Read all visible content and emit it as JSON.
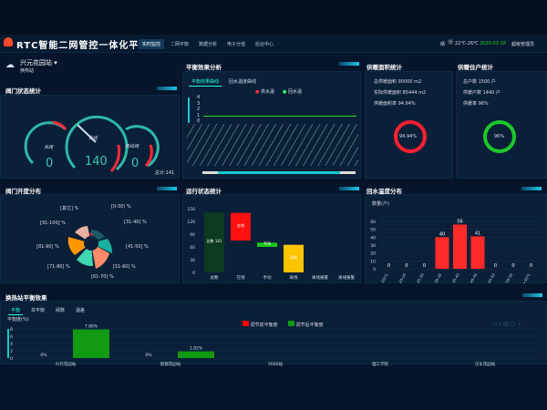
{
  "header": {
    "title": "RTC智能二网管控一体化平台",
    "nav": [
      "实时监控",
      "二网平衡",
      "数据分析",
      "电子分值",
      "后台中心"
    ],
    "weather_label": "晴",
    "temperature": "22℃-26℃",
    "date": "2020-03-18",
    "user": "超级管理员"
  },
  "station": {
    "name": "兴元花园站",
    "sub": "换热站"
  },
  "valve_status": {
    "title": "阀门状态统计",
    "gauges": [
      {
        "label": "关阀",
        "value": "0"
      },
      {
        "label": "在线",
        "value": "140"
      },
      {
        "label": "离线阀",
        "value": "0"
      }
    ],
    "total": "总计:141"
  },
  "balance": {
    "title": "平衡效果分析",
    "tabs": [
      "平衡效果曲线",
      "回水温度曲线"
    ],
    "legend": [
      "供水温",
      "回水温"
    ],
    "y_ticks": [
      "4",
      "3",
      "2",
      "1",
      "0"
    ]
  },
  "area": {
    "title": "供暖面积统计",
    "rows": [
      {
        "k": "总供暖面积",
        "v": "90000 m2"
      },
      {
        "k": "实际供暖面积",
        "v": "85444 m2"
      },
      {
        "k": "供暖面积率",
        "v": "94.94%"
      }
    ],
    "donut": "94.94%",
    "percent": 94.94,
    "color": "#ff2030"
  },
  "households": {
    "title": "供暖住户统计",
    "rows": [
      {
        "k": "总户数",
        "v": "1500 户"
      },
      {
        "k": "供暖户数",
        "v": "1440 户"
      },
      {
        "k": "供暖率",
        "v": "96%"
      }
    ],
    "donut": "96%",
    "percent": 96,
    "color": "#1bc82a"
  },
  "opening": {
    "title": "阀门开度分布",
    "labels": [
      "[0-30) %",
      "[31-40] %",
      "[41-50] %",
      "[51-60] %",
      "[61-70] %",
      "[71-80] %",
      "[81-90] %",
      "[91-100] %",
      "[其它] %"
    ]
  },
  "chart_data": [
    {
      "type": "bar",
      "title": "运行状态统计",
      "categories": [
        "总数",
        "在线",
        "手动",
        "离线",
        "离线报警",
        "离线报警"
      ],
      "values": [
        141,
        65,
        10,
        65,
        0,
        0
      ],
      "bases": [
        0,
        75,
        60,
        0,
        0,
        0
      ],
      "colors": [
        "#0d3a22",
        "#ff1010",
        "#18c818",
        "#ffc400",
        "#fff",
        "#fff"
      ],
      "labels": [
        "总数 141",
        "在线",
        "手动",
        "离线",
        "",
        ""
      ],
      "ylim": [
        0,
        150
      ],
      "y_ticks": [
        0,
        30,
        60,
        90,
        120,
        150
      ]
    },
    {
      "type": "bar",
      "title": "回水温度分布",
      "ylabel": "数量(户)",
      "categories": [
        "[0-20)℃",
        "20-25",
        "25-30",
        "30-35",
        "35-40",
        "40-45",
        "45-50",
        "50-55",
        ">55℃"
      ],
      "values": [
        0,
        0,
        0,
        40,
        56,
        41,
        0,
        0,
        0
      ],
      "ylim": [
        0,
        60
      ],
      "y_ticks": [
        0,
        10,
        20,
        30,
        40,
        50,
        60
      ],
      "color": "#ff2a2a"
    },
    {
      "type": "bar",
      "title": "换热站平衡效果",
      "tabs": [
        "平衡",
        "非平衡",
        "阀数",
        "温差"
      ],
      "ylabel": "平衡度(%)",
      "categories": [
        "兴元花园站",
        "新都花园站",
        "5000站",
        "理工学院",
        "汉东花园站"
      ],
      "series": [
        {
          "name": "调节前平衡度",
          "values": [
            0,
            0,
            null,
            null,
            null
          ],
          "color": "#ff0000"
        },
        {
          "name": "调节后平衡度",
          "values": [
            7.86,
            1.82,
            null,
            null,
            null
          ],
          "color": "#129a12"
        }
      ],
      "value_labels": {
        "before": [
          "0%",
          "0%"
        ],
        "after": [
          "7.86%",
          "1.82%"
        ]
      },
      "ylim": [
        0,
        8
      ],
      "y_ticks": [
        0,
        2,
        4,
        6,
        8
      ]
    }
  ]
}
